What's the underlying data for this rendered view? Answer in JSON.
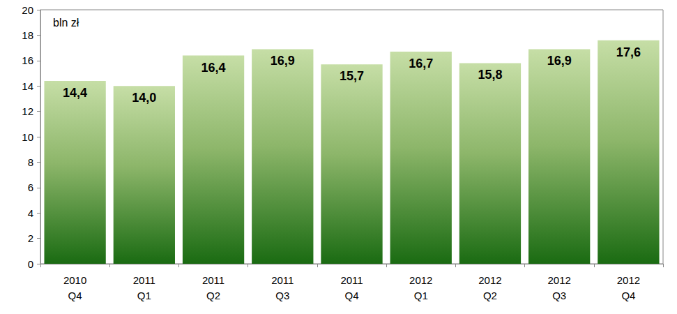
{
  "chart_data": {
    "type": "bar",
    "ylabel": "bln zł",
    "categories": [
      "2010\nQ4",
      "2011\nQ1",
      "2011\nQ2",
      "2011\nQ3",
      "2011\nQ4",
      "2012\nQ1",
      "2012\nQ2",
      "2012\nQ3",
      "2012\nQ4"
    ],
    "values": [
      14.4,
      14.0,
      16.4,
      16.9,
      15.7,
      16.7,
      15.8,
      16.9,
      17.6
    ],
    "value_labels": [
      "14,4",
      "14,0",
      "16,4",
      "16,9",
      "15,7",
      "16,7",
      "15,8",
      "16,9",
      "17,6"
    ],
    "color": "#1a6b12",
    "ylim": [
      0,
      20
    ],
    "yticks": [
      0,
      2,
      4,
      6,
      8,
      10,
      12,
      14,
      16,
      18,
      20
    ],
    "grid": false,
    "data_labels": true
  }
}
